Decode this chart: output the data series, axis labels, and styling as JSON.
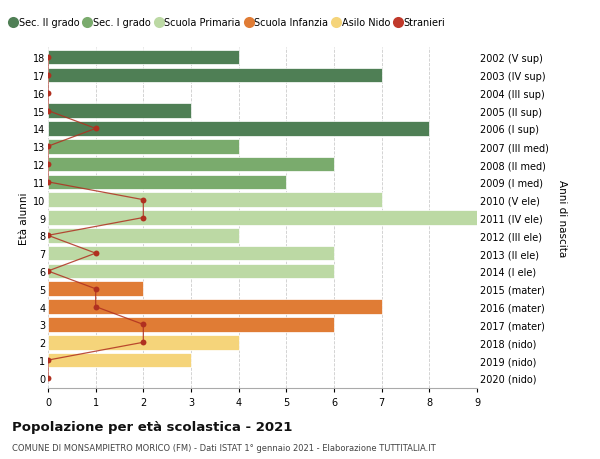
{
  "ages": [
    18,
    17,
    16,
    15,
    14,
    13,
    12,
    11,
    10,
    9,
    8,
    7,
    6,
    5,
    4,
    3,
    2,
    1,
    0
  ],
  "years": [
    "2002 (V sup)",
    "2003 (IV sup)",
    "2004 (III sup)",
    "2005 (II sup)",
    "2006 (I sup)",
    "2007 (III med)",
    "2008 (II med)",
    "2009 (I med)",
    "2010 (V ele)",
    "2011 (IV ele)",
    "2012 (III ele)",
    "2013 (II ele)",
    "2014 (I ele)",
    "2015 (mater)",
    "2016 (mater)",
    "2017 (mater)",
    "2018 (nido)",
    "2019 (nido)",
    "2020 (nido)"
  ],
  "bar_values": [
    4,
    7,
    0,
    3,
    8,
    4,
    6,
    5,
    7,
    9,
    4,
    6,
    6,
    2,
    7,
    6,
    4,
    3,
    0
  ],
  "bar_colors": [
    "#4f7f55",
    "#4f7f55",
    "#4f7f55",
    "#4f7f55",
    "#4f7f55",
    "#7aab6d",
    "#7aab6d",
    "#7aab6d",
    "#bcd9a4",
    "#bcd9a4",
    "#bcd9a4",
    "#bcd9a4",
    "#bcd9a4",
    "#e07c35",
    "#e07c35",
    "#e07c35",
    "#f5d47a",
    "#f5d47a",
    "#f5d47a"
  ],
  "stranieri_values": [
    0,
    0,
    0,
    0,
    1,
    0,
    0,
    0,
    2,
    2,
    0,
    1,
    0,
    1,
    1,
    2,
    2,
    0,
    0
  ],
  "legend_labels": [
    "Sec. II grado",
    "Sec. I grado",
    "Scuola Primaria",
    "Scuola Infanzia",
    "Asilo Nido",
    "Stranieri"
  ],
  "legend_colors": [
    "#4f7f55",
    "#7aab6d",
    "#bcd9a4",
    "#e07c35",
    "#f5d47a",
    "#c0392b"
  ],
  "title": "Popolazione per età scolastica - 2021",
  "subtitle": "COMUNE DI MONSAMPIETRO MORICO (FM) - Dati ISTAT 1° gennaio 2021 - Elaborazione TUTTITALIA.IT",
  "ylabel_left": "Età alunni",
  "ylabel_right": "Anni di nascita",
  "xlim": [
    0,
    9
  ],
  "bar_height": 0.82,
  "stranieri_color": "#b03020",
  "stranieri_line_color": "#b03020",
  "grid_color": "#cccccc",
  "bg_color": "#ffffff"
}
